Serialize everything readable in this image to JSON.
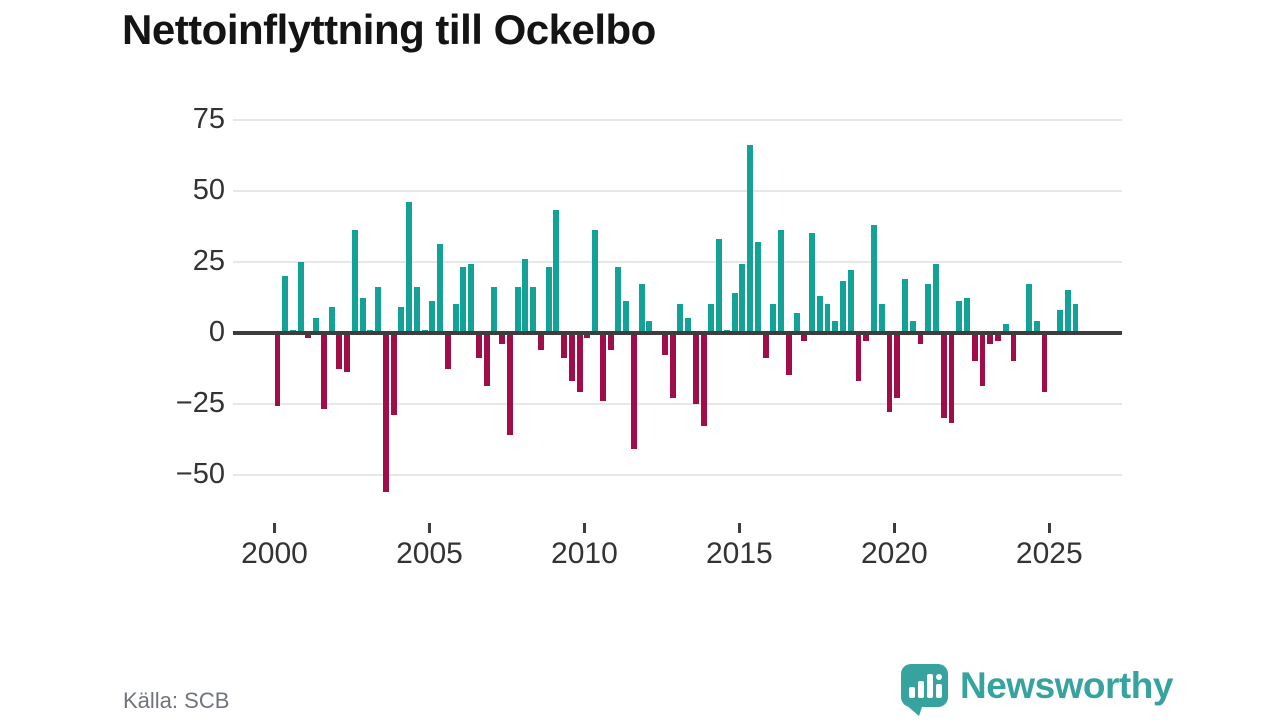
{
  "title": "Nettoinflyttning till Ockelbo",
  "source": "Källa: SCB",
  "logo": {
    "text": "Newsworthy",
    "icon": "newsworthy-bar-chart-bubble-icon",
    "color": "#37a39e"
  },
  "y_axis": {
    "tick_labels": [
      "75",
      "50",
      "25",
      "0",
      "−25",
      "−50"
    ],
    "tick_values": [
      75,
      50,
      25,
      0,
      -25,
      -50
    ]
  },
  "x_axis": {
    "tick_labels": [
      "2000",
      "2005",
      "2010",
      "2015",
      "2020",
      "2025"
    ]
  },
  "chart_data": {
    "type": "bar",
    "title": "Nettoinflyttning till Ockelbo",
    "frequency": "quarterly",
    "x_start": "2000-Q1",
    "x_end": "2025-Q4",
    "start_year": 2000,
    "ylim": [
      -60,
      80
    ],
    "grid": true,
    "positive_color": "#12a296",
    "negative_color": "#a00d49",
    "values": [
      -26,
      20,
      1,
      25,
      -2,
      5,
      -27,
      9,
      -13,
      -14,
      36,
      12,
      1,
      16,
      -56,
      -29,
      9,
      46,
      16,
      1,
      11,
      31,
      -13,
      10,
      23,
      24,
      -9,
      -19,
      16,
      -4,
      -36,
      16,
      26,
      16,
      -6,
      23,
      43,
      -9,
      -17,
      -21,
      -2,
      36,
      -24,
      -6,
      23,
      11,
      -41,
      17,
      4,
      0,
      -8,
      -23,
      10,
      5,
      -25,
      -33,
      10,
      33,
      1,
      14,
      24,
      66,
      32,
      -9,
      10,
      36,
      -15,
      7,
      -3,
      35,
      13,
      10,
      4,
      18,
      22,
      -17,
      -3,
      38,
      10,
      -28,
      -23,
      19,
      4,
      -4,
      17,
      24,
      -30,
      -32,
      11,
      12,
      -10,
      -19,
      -4,
      -3,
      3,
      -10,
      0,
      17,
      4,
      -21,
      0,
      8,
      15,
      10
    ]
  }
}
